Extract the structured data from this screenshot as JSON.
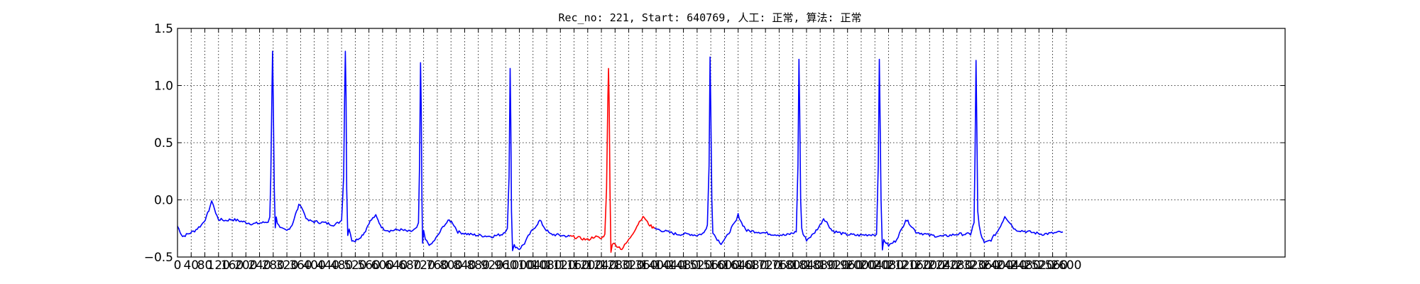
{
  "chart_data": {
    "type": "line",
    "title": "Rec_no: 221, Start: 640769, 人工: 正常, 算法: 正常",
    "xlabel": "",
    "ylabel": "",
    "grid": true,
    "ylim": [
      -0.5,
      1.5
    ],
    "xlim": [
      0,
      3240
    ],
    "y_ticks": [
      1.5,
      1.0,
      0.5,
      0.0,
      -0.5
    ],
    "y_tick_labels": [
      "1.5",
      "1.0",
      "0.5",
      "0.0",
      "−0.5"
    ],
    "x_tick_labels": [
      "0",
      "40",
      "80",
      "120",
      "160",
      "200",
      "240",
      "280",
      "320",
      "360",
      "400",
      "440",
      "480",
      "520",
      "560",
      "600",
      "640",
      "680",
      "720",
      "760",
      "800",
      "840",
      "880",
      "920",
      "960",
      "1000",
      "1040",
      "1080",
      "1120",
      "1160",
      "1200",
      "1240",
      "1280",
      "1320",
      "1360",
      "1400",
      "1440",
      "1480",
      "1520",
      "1560",
      "1600",
      "1640",
      "1680",
      "1720",
      "1760",
      "1800",
      "1840",
      "1880",
      "1920",
      "1960",
      "2000",
      "2040",
      "2080",
      "2120",
      "2160",
      "2200",
      "2240",
      "2280",
      "2320",
      "2360",
      "2400",
      "2440",
      "2480",
      "2520",
      "2560",
      "2600"
    ],
    "series": [
      {
        "color": "#0000ff",
        "segments": [
          [
            [
              0,
              -0.23
            ],
            [
              8,
              -0.28
            ],
            [
              15,
              -0.32
            ],
            [
              30,
              -0.3
            ],
            [
              50,
              -0.27
            ],
            [
              70,
              -0.22
            ],
            [
              85,
              -0.15
            ],
            [
              95,
              -0.06
            ],
            [
              100,
              -0.02
            ],
            [
              105,
              -0.04
            ],
            [
              112,
              -0.12
            ],
            [
              120,
              -0.17
            ],
            [
              140,
              -0.18
            ],
            [
              160,
              -0.17
            ],
            [
              190,
              -0.19
            ],
            [
              220,
              -0.21
            ],
            [
              250,
              -0.2
            ],
            [
              265,
              -0.19
            ],
            [
              270,
              -0.15
            ],
            [
              273,
              0.2
            ],
            [
              276,
              0.9
            ],
            [
              278,
              1.3
            ],
            [
              280,
              0.9
            ],
            [
              283,
              0.1
            ],
            [
              286,
              -0.25
            ],
            [
              289,
              -0.14
            ],
            [
              292,
              -0.2
            ],
            [
              300,
              -0.25
            ],
            [
              320,
              -0.27
            ],
            [
              335,
              -0.22
            ],
            [
              345,
              -0.13
            ],
            [
              355,
              -0.05
            ],
            [
              360,
              -0.04
            ],
            [
              368,
              -0.1
            ],
            [
              380,
              -0.18
            ],
            [
              400,
              -0.19
            ],
            [
              430,
              -0.2
            ],
            [
              460,
              -0.22
            ],
            [
              480,
              -0.18
            ],
            [
              486,
              0.2
            ],
            [
              489,
              0.9
            ],
            [
              491,
              1.3
            ],
            [
              493,
              0.9
            ],
            [
              495,
              0.1
            ],
            [
              498,
              -0.3
            ],
            [
              502,
              -0.25
            ],
            [
              510,
              -0.35
            ],
            [
              520,
              -0.36
            ],
            [
              540,
              -0.31
            ],
            [
              550,
              -0.27
            ],
            [
              560,
              -0.2
            ],
            [
              575,
              -0.15
            ],
            [
              580,
              -0.14
            ],
            [
              590,
              -0.2
            ],
            [
              600,
              -0.25
            ],
            [
              620,
              -0.27
            ],
            [
              650,
              -0.26
            ],
            [
              680,
              -0.28
            ],
            [
              700,
              -0.25
            ],
            [
              705,
              -0.2
            ],
            [
              708,
              0.3
            ],
            [
              711,
              1.2
            ],
            [
              713,
              0.8
            ],
            [
              715,
              0.0
            ],
            [
              717,
              -0.38
            ],
            [
              720,
              -0.28
            ],
            [
              725,
              -0.35
            ],
            [
              740,
              -0.4
            ],
            [
              760,
              -0.32
            ],
            [
              780,
              -0.22
            ],
            [
              795,
              -0.18
            ],
            [
              805,
              -0.2
            ],
            [
              820,
              -0.28
            ],
            [
              850,
              -0.3
            ],
            [
              880,
              -0.31
            ],
            [
              920,
              -0.32
            ],
            [
              950,
              -0.3
            ],
            [
              965,
              -0.25
            ],
            [
              970,
              0.2
            ],
            [
              973,
              1.15
            ],
            [
              975,
              0.7
            ],
            [
              977,
              -0.1
            ],
            [
              980,
              -0.45
            ],
            [
              985,
              -0.4
            ],
            [
              1000,
              -0.43
            ],
            [
              1015,
              -0.38
            ],
            [
              1030,
              -0.3
            ],
            [
              1050,
              -0.22
            ],
            [
              1060,
              -0.18
            ],
            [
              1075,
              -0.25
            ],
            [
              1090,
              -0.3
            ],
            [
              1120,
              -0.31
            ],
            [
              1148,
              -0.32
            ]
          ],
          [
            [
              1395,
              -0.25
            ],
            [
              1420,
              -0.27
            ],
            [
              1460,
              -0.3
            ],
            [
              1500,
              -0.3
            ],
            [
              1520,
              -0.31
            ],
            [
              1540,
              -0.29
            ],
            [
              1550,
              -0.22
            ],
            [
              1555,
              0.3
            ],
            [
              1558,
              1.25
            ],
            [
              1560,
              0.8
            ],
            [
              1563,
              0.0
            ],
            [
              1566,
              -0.28
            ],
            [
              1575,
              -0.33
            ],
            [
              1590,
              -0.38
            ],
            [
              1605,
              -0.33
            ],
            [
              1620,
              -0.25
            ],
            [
              1635,
              -0.18
            ],
            [
              1640,
              -0.13
            ],
            [
              1650,
              -0.2
            ],
            [
              1665,
              -0.27
            ],
            [
              1700,
              -0.28
            ],
            [
              1740,
              -0.3
            ],
            [
              1780,
              -0.31
            ],
            [
              1810,
              -0.28
            ],
            [
              1815,
              0.3
            ],
            [
              1818,
              1.23
            ],
            [
              1820,
              0.8
            ],
            [
              1823,
              0.0
            ],
            [
              1826,
              -0.25
            ],
            [
              1830,
              -0.3
            ],
            [
              1840,
              -0.35
            ],
            [
              1860,
              -0.3
            ],
            [
              1880,
              -0.22
            ],
            [
              1890,
              -0.16
            ],
            [
              1900,
              -0.2
            ],
            [
              1915,
              -0.27
            ],
            [
              1950,
              -0.3
            ],
            [
              1990,
              -0.31
            ],
            [
              2045,
              -0.3
            ],
            [
              2050,
              0.3
            ],
            [
              2053,
              1.23
            ],
            [
              2055,
              0.8
            ],
            [
              2058,
              0.0
            ],
            [
              2062,
              -0.45
            ],
            [
              2066,
              -0.35
            ],
            [
              2080,
              -0.4
            ],
            [
              2100,
              -0.36
            ],
            [
              2120,
              -0.25
            ],
            [
              2130,
              -0.17
            ],
            [
              2140,
              -0.2
            ],
            [
              2160,
              -0.28
            ],
            [
              2200,
              -0.31
            ],
            [
              2240,
              -0.32
            ],
            [
              2280,
              -0.3
            ],
            [
              2320,
              -0.3
            ],
            [
              2330,
              -0.2
            ],
            [
              2333,
              0.4
            ],
            [
              2336,
              1.22
            ],
            [
              2338,
              0.7
            ],
            [
              2341,
              -0.1
            ],
            [
              2345,
              -0.23
            ],
            [
              2350,
              -0.3
            ],
            [
              2360,
              -0.38
            ],
            [
              2380,
              -0.35
            ],
            [
              2400,
              -0.27
            ],
            [
              2415,
              -0.18
            ],
            [
              2420,
              -0.14
            ],
            [
              2430,
              -0.18
            ],
            [
              2450,
              -0.26
            ],
            [
              2490,
              -0.28
            ],
            [
              2530,
              -0.3
            ],
            [
              2565,
              -0.29
            ],
            [
              2590,
              -0.28
            ]
          ]
        ]
      },
      {
        "color": "#ff0000",
        "segments": [
          [
            [
              1148,
              -0.32
            ],
            [
              1170,
              -0.33
            ],
            [
              1200,
              -0.35
            ],
            [
              1220,
              -0.32
            ],
            [
              1240,
              -0.34
            ],
            [
              1250,
              -0.3
            ],
            [
              1255,
              0.1
            ],
            [
              1259,
              0.9
            ],
            [
              1261,
              1.15
            ],
            [
              1263,
              0.8
            ],
            [
              1265,
              0.1
            ],
            [
              1268,
              -0.45
            ],
            [
              1272,
              -0.38
            ],
            [
              1285,
              -0.4
            ],
            [
              1300,
              -0.43
            ],
            [
              1320,
              -0.35
            ],
            [
              1340,
              -0.25
            ],
            [
              1355,
              -0.17
            ],
            [
              1365,
              -0.15
            ],
            [
              1375,
              -0.2
            ],
            [
              1385,
              -0.23
            ],
            [
              1395,
              -0.25
            ]
          ]
        ]
      }
    ]
  }
}
